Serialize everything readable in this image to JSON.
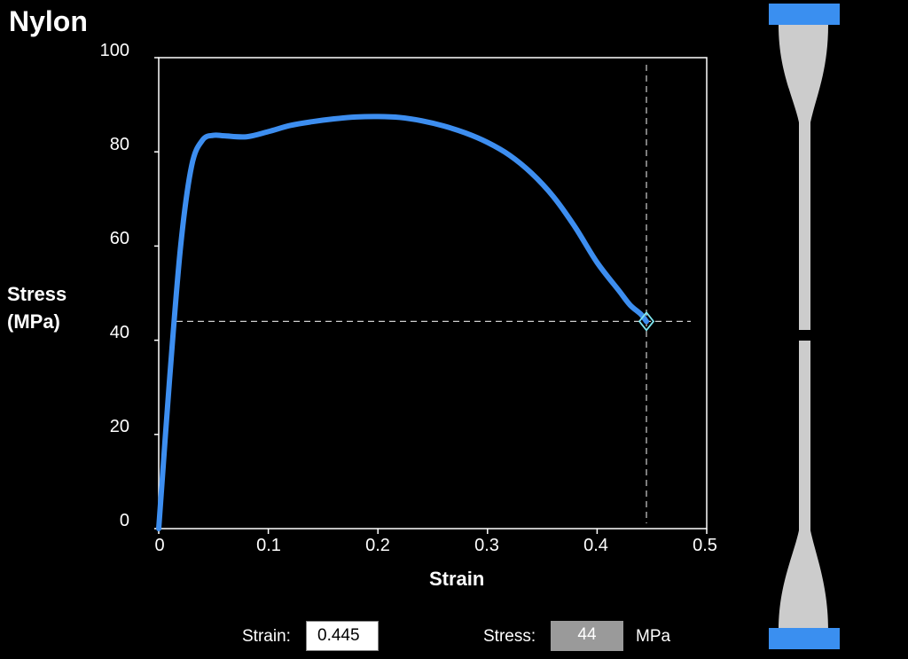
{
  "title": "Nylon",
  "colors": {
    "background": "#000000",
    "curve": "#3d8ef0",
    "axis": "#ffffff",
    "crosshair": "#cfcfcf",
    "marker": "#7fe6f0",
    "specimen": "#cccccc",
    "grip": "#3a8ff0"
  },
  "readout": {
    "strain_label": "Strain:",
    "strain_value": "0.445",
    "stress_label": "Stress:",
    "stress_value": "44",
    "stress_unit": "MPa"
  },
  "chart_data": {
    "type": "line",
    "xlabel": "Strain",
    "ylabel_line1": "Stress",
    "ylabel_line2": "(MPa)",
    "xlim": [
      0,
      0.5
    ],
    "ylim": [
      0,
      100
    ],
    "x_ticks": [
      "0",
      "0.1",
      "0.2",
      "0.3",
      "0.4",
      "0.5"
    ],
    "y_ticks": [
      "0",
      "20",
      "40",
      "60",
      "80",
      "100"
    ],
    "grid": false,
    "series": [
      {
        "x": [
          0,
          0.01,
          0.02,
          0.03,
          0.04,
          0.05,
          0.06,
          0.08,
          0.1,
          0.12,
          0.14,
          0.16,
          0.18,
          0.2,
          0.22,
          0.24,
          0.26,
          0.28,
          0.3,
          0.32,
          0.34,
          0.36,
          0.38,
          0.4,
          0.42,
          0.43,
          0.44,
          0.445
        ],
        "y": [
          0,
          32,
          60,
          77,
          82.5,
          83.5,
          83.4,
          83.2,
          84.3,
          85.6,
          86.4,
          87,
          87.4,
          87.5,
          87.3,
          86.6,
          85.5,
          84,
          82,
          79.3,
          75.5,
          70.5,
          64,
          56.5,
          50.5,
          47.5,
          45.5,
          44
        ]
      }
    ],
    "crosshair": {
      "x": 0.445,
      "y": 44
    }
  }
}
